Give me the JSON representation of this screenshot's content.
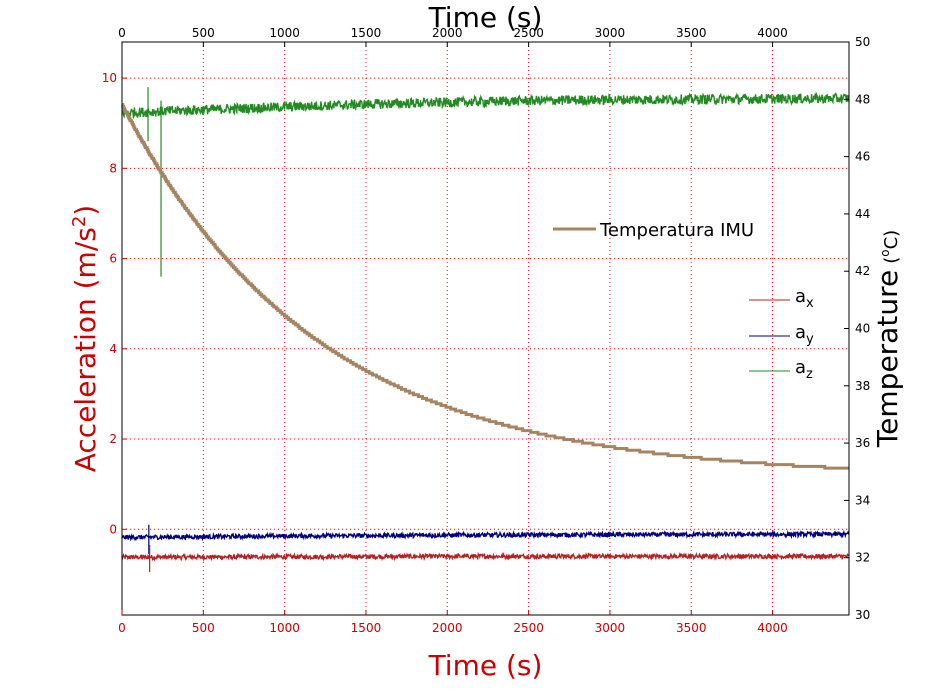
{
  "chart_data": {
    "type": "line",
    "title": "",
    "x_top_label": "Time (s)",
    "x_bottom_label": "Time (s)",
    "y_left_label": "Acceleration (m/s",
    "y_left_label_sup": "2",
    "y_left_label_end": ")",
    "y_right_label": "Temperature",
    "y_right_unit_pre": "(",
    "y_right_unit_sup": "o",
    "y_right_unit_post": "C)",
    "xlim": [
      0,
      4470
    ],
    "y_left_lim": [
      -1.9,
      10.8
    ],
    "y_right_lim": [
      30,
      50
    ],
    "x_ticks": [
      0,
      500,
      1000,
      1500,
      2000,
      2500,
      3000,
      3500,
      4000
    ],
    "y_left_ticks": [
      0,
      2,
      4,
      6,
      8,
      10
    ],
    "y_right_ticks": [
      30,
      32,
      34,
      36,
      38,
      40,
      42,
      44,
      46,
      48,
      50
    ],
    "grid": true,
    "colors": {
      "ax": "#b22222",
      "ay": "#000080",
      "az": "#228b22",
      "temp": "#a68461",
      "left_axis": "#cc0000",
      "right_axis": "#000000",
      "grid": "#ff0000"
    },
    "legend_temp": {
      "label": "Temperatura IMU"
    },
    "legend_acc": [
      {
        "base": "a",
        "sub": "x",
        "color": "#b22222"
      },
      {
        "base": "a",
        "sub": "y",
        "color": "#000080"
      },
      {
        "base": "a",
        "sub": "z",
        "color": "#228b22"
      }
    ],
    "series": [
      {
        "name": "Temperatura IMU",
        "axis": "right",
        "model": "exponential",
        "start_value": 47.8,
        "end_value": 34.8,
        "time_constant": 1200
      },
      {
        "name": "a_x",
        "axis": "left",
        "points": [
          [
            0,
            -0.62
          ],
          [
            1000,
            -0.61
          ],
          [
            2000,
            -0.6
          ],
          [
            3000,
            -0.6
          ],
          [
            4470,
            -0.6
          ]
        ]
      },
      {
        "name": "a_y",
        "axis": "left",
        "points": [
          [
            0,
            -0.18
          ],
          [
            1000,
            -0.15
          ],
          [
            2000,
            -0.13
          ],
          [
            3000,
            -0.12
          ],
          [
            4470,
            -0.11
          ]
        ]
      },
      {
        "name": "a_z",
        "axis": "left",
        "points": [
          [
            0,
            9.23
          ],
          [
            500,
            9.3
          ],
          [
            1000,
            9.36
          ],
          [
            1500,
            9.42
          ],
          [
            2000,
            9.46
          ],
          [
            2500,
            9.5
          ],
          [
            3000,
            9.52
          ],
          [
            3500,
            9.53
          ],
          [
            4000,
            9.54
          ],
          [
            4470,
            9.55
          ]
        ]
      }
    ],
    "spikes": [
      {
        "series": "a_z",
        "x": 160,
        "y_min": 8.6,
        "y_max": 9.8
      },
      {
        "series": "a_z",
        "x": 240,
        "y_min": 5.6,
        "y_max": 9.5
      },
      {
        "series": "a_y",
        "x": 165,
        "y_min": -0.55,
        "y_max": 0.1
      },
      {
        "series": "a_x",
        "x": 170,
        "y_min": -0.95,
        "y_max": -0.35
      }
    ]
  }
}
